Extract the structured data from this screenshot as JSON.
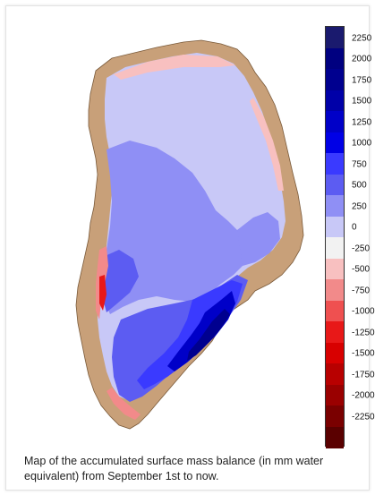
{
  "colorbar": {
    "labels": [
      "2250",
      "2000",
      "1750",
      "1500",
      "1250",
      "1000",
      "750",
      "500",
      "250",
      "0",
      "-250",
      "-500",
      "-750",
      "-1000",
      "-1250",
      "-1500",
      "-1750",
      "-2000",
      "-2250"
    ],
    "colors": [
      "#1a1a6e",
      "#000080",
      "#00008f",
      "#0000a8",
      "#0000c8",
      "#0000e6",
      "#3a3aff",
      "#5c5cf2",
      "#8f8ff5",
      "#c8c8f7",
      "#f2f2f2",
      "#f8c0c0",
      "#f28a8a",
      "#ef5050",
      "#e81818",
      "#d80000",
      "#b80000",
      "#9a0000",
      "#7a0000",
      "#5a0000"
    ]
  },
  "map": {
    "land_color": "#c8a079",
    "ocean_color": "#ffffff"
  },
  "caption": "Map of the accumulated surface mass balance (in mm water equivalent) from September 1st to now."
}
